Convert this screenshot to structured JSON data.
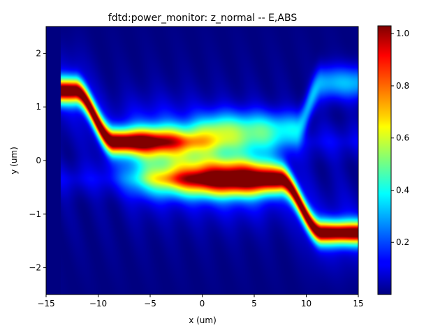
{
  "chart_data": {
    "type": "heatmap",
    "title": "fdtd:power_monitor: z_normal -- E,ABS",
    "xlabel": "x (um)",
    "ylabel": "y (um)",
    "xlim": [
      -15,
      15
    ],
    "ylim": [
      -2.5,
      2.5
    ],
    "x_ticks": [
      -15,
      -10,
      -5,
      0,
      5,
      10,
      15
    ],
    "x_tick_labels": [
      "−15",
      "−10",
      "−5",
      "0",
      "5",
      "10",
      "15"
    ],
    "y_ticks": [
      -2,
      -1,
      0,
      1,
      2
    ],
    "y_tick_labels": [
      "−2",
      "−1",
      "0",
      "1",
      "2"
    ],
    "colorbar": {
      "colormap": "jet",
      "range": [
        0.0,
        1.03
      ],
      "ticks": [
        0.2,
        0.4,
        0.6,
        0.8,
        1.0
      ],
      "tick_labels": [
        "0.2",
        "0.4",
        "0.6",
        "0.8",
        "1.0"
      ]
    },
    "field_features": {
      "data_x_start": -13.6,
      "upper_waveguide": {
        "y_left": 1.3,
        "x_bend_start": -12.2,
        "x_bend_end": -8.5,
        "y_right": 0.35,
        "x_fade": 2.0,
        "peak": 1.02
      },
      "lower_waveguide": {
        "y_left": -0.35,
        "x_bend_start": 7.5,
        "x_bend_end": 11.5,
        "y_right": -1.35,
        "x_grow": -3.0,
        "peak": 1.0
      },
      "faint_branch": {
        "y_start": 0.6,
        "x_bend_start": 9.0,
        "x_bend_end": 11.5,
        "y_end": 1.45,
        "peak": 0.3
      }
    }
  }
}
